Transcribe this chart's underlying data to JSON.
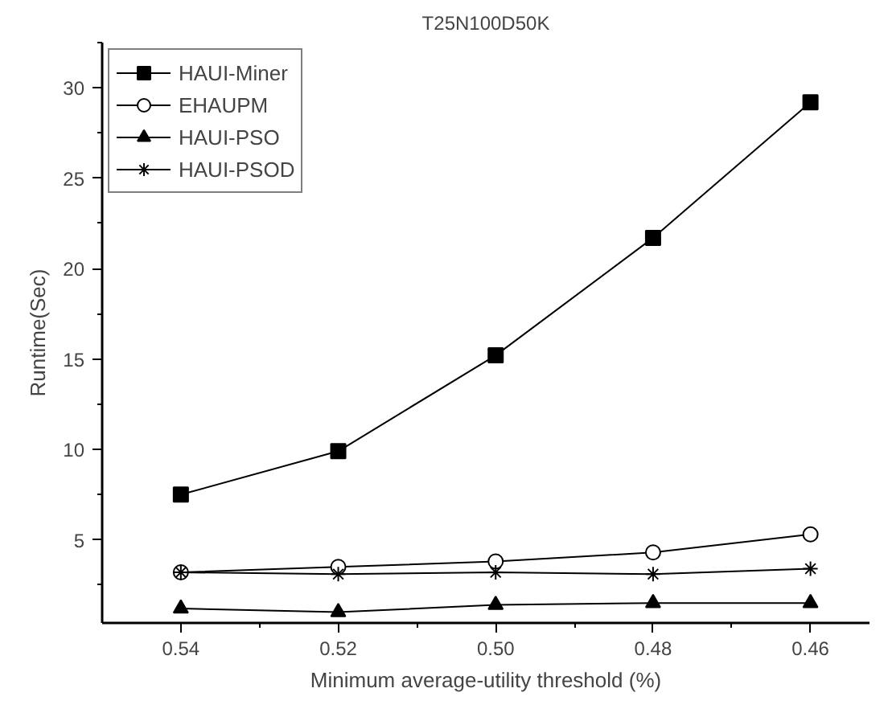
{
  "chart_data": {
    "type": "line",
    "title": "T25N100D50K",
    "xlabel": "Minimum average-utility threshold (%)",
    "ylabel": "Runtime(Sec)",
    "x": [
      0.54,
      0.52,
      0.5,
      0.48,
      0.46
    ],
    "xlim": [
      0.55,
      0.4525
    ],
    "xticks": [
      0.54,
      0.52,
      {
        "value": 0.5,
        "label": "0.50"
      },
      0.48,
      0.46,
      {
        "value": 0.53,
        "label": null
      },
      {
        "value": 0.51,
        "label": null
      },
      {
        "value": 0.49,
        "label": null
      },
      {
        "value": 0.47,
        "label": null
      }
    ],
    "ylim": [
      0.4,
      32.5
    ],
    "yticks": [
      5,
      10,
      15,
      20,
      25,
      30,
      {
        "value": 2.5,
        "label": null
      },
      {
        "value": 7.5,
        "label": null
      },
      {
        "value": 12.5,
        "label": null
      },
      {
        "value": 17.5,
        "label": null
      },
      {
        "value": 22.5,
        "label": null
      },
      {
        "value": 27.5,
        "label": null
      },
      {
        "value": 32.5,
        "label": null
      }
    ],
    "grid": false,
    "legend": "top left",
    "line_style": "solid",
    "series": [
      {
        "name": "HAUI-Miner",
        "color": "#000000",
        "marker": "square",
        "values": [
          7.5,
          9.9,
          15.2,
          21.7,
          29.2
        ]
      },
      {
        "name": "EHAUPM",
        "color": "#000000",
        "marker": "circle",
        "values": [
          3.2,
          3.5,
          3.8,
          4.3,
          5.3
        ]
      },
      {
        "name": "HAUI-PSO",
        "color": "#000000",
        "marker": "triangle",
        "values": [
          1.2,
          1.0,
          1.4,
          1.5,
          1.5
        ]
      },
      {
        "name": "HAUI-PSOD",
        "color": "#000000",
        "marker": "cross",
        "values": [
          3.2,
          3.1,
          3.2,
          3.1,
          3.4
        ]
      }
    ]
  }
}
